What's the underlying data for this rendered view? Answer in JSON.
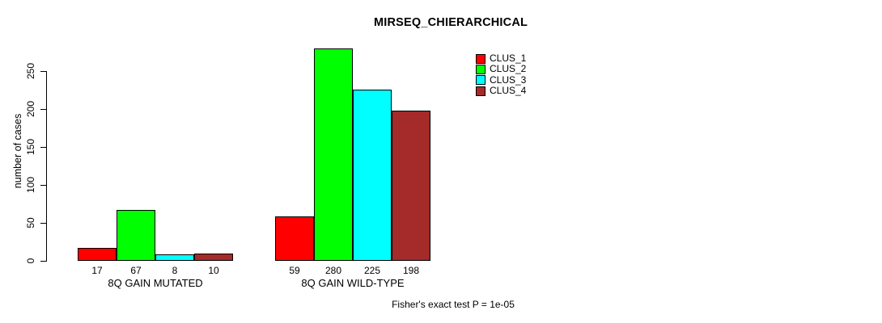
{
  "chart_data": {
    "type": "bar",
    "title": "MIRSEQ_CHIERARCHICAL",
    "ylabel": "number of cases",
    "xlabel": "",
    "yticks": [
      0,
      50,
      100,
      150,
      200,
      250
    ],
    "ylim": [
      0,
      280
    ],
    "grid": false,
    "legend_position": "top-right",
    "categories": [
      "8Q GAIN MUTATED",
      "8Q GAIN WILD-TYPE"
    ],
    "series": [
      {
        "name": "CLUS_1",
        "color": "#ff0000",
        "values": [
          17,
          59
        ]
      },
      {
        "name": "CLUS_2",
        "color": "#00ff00",
        "values": [
          67,
          280
        ]
      },
      {
        "name": "CLUS_3",
        "color": "#00ffff",
        "values": [
          8,
          225
        ]
      },
      {
        "name": "CLUS_4",
        "color": "#a52a2a",
        "values": [
          10,
          198
        ]
      }
    ],
    "bar_value_labels": {
      "8Q GAIN MUTATED": [
        17,
        67,
        8,
        10
      ],
      "8Q GAIN WILD-TYPE": [
        59,
        280,
        225,
        198
      ]
    },
    "footnote": "Fisher's exact test P = 1e-05"
  }
}
